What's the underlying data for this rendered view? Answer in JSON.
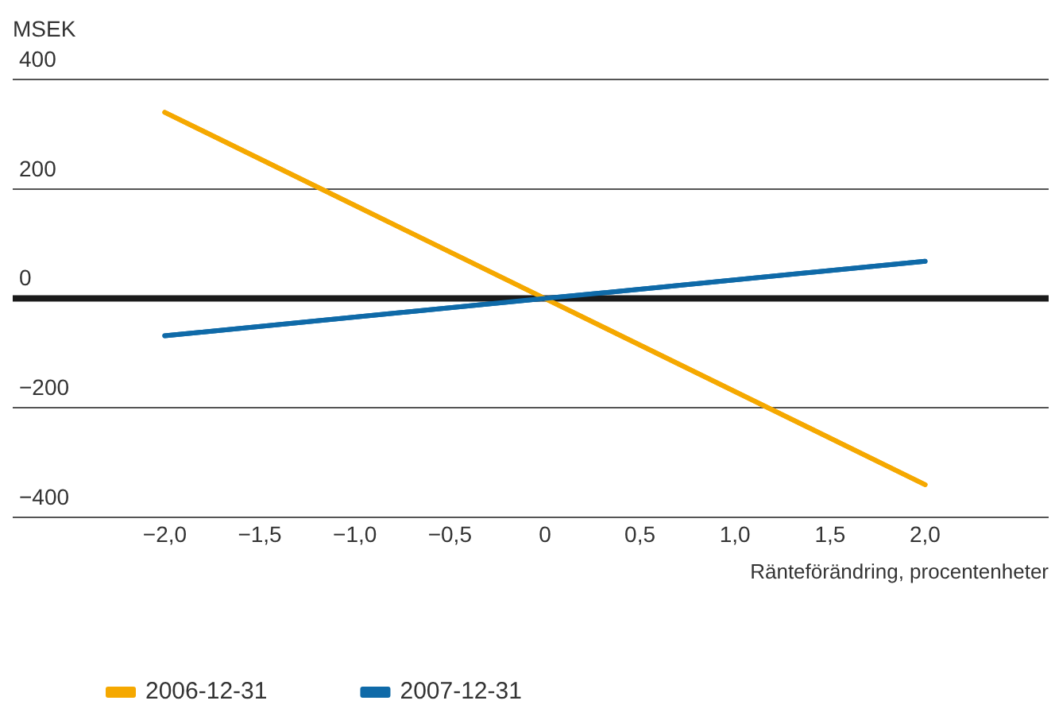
{
  "chart_data": {
    "type": "line",
    "ylabel": "MSEK",
    "xlabel": "Ränteförändring, procentenheter",
    "xlim": [
      -2.8,
      2.65
    ],
    "ylim": [
      -400,
      400
    ],
    "xticks": [
      {
        "value": -2,
        "label": "−2,0"
      },
      {
        "value": -1.5,
        "label": "−1,5"
      },
      {
        "value": -1,
        "label": "−1,0"
      },
      {
        "value": -0.5,
        "label": "−0,5"
      },
      0,
      {
        "value": 0.5,
        "label": "0,5"
      },
      {
        "value": 1,
        "label": "1,0"
      },
      {
        "value": 1.5,
        "label": "1,5"
      },
      {
        "value": 2,
        "label": "2,0"
      }
    ],
    "yticks": [
      {
        "value": -400,
        "label": "−400"
      },
      {
        "value": -200,
        "label": "−200"
      },
      0,
      200,
      400
    ],
    "grid": "y",
    "legend": "bottom left",
    "marker": "none",
    "line_style": "solid",
    "ref_lines": [
      {
        "axis": "y",
        "value": 0,
        "color": "#1a1a1a"
      }
    ],
    "series": [
      {
        "name": "2006-12-31",
        "color": "#f5a800",
        "x": [
          -2,
          0,
          2
        ],
        "values": [
          340,
          0,
          -340
        ]
      },
      {
        "name": "2007-12-31",
        "color": "#0f6aa8",
        "x": [
          -2,
          0,
          2
        ],
        "values": [
          -68,
          0,
          68
        ]
      }
    ]
  }
}
